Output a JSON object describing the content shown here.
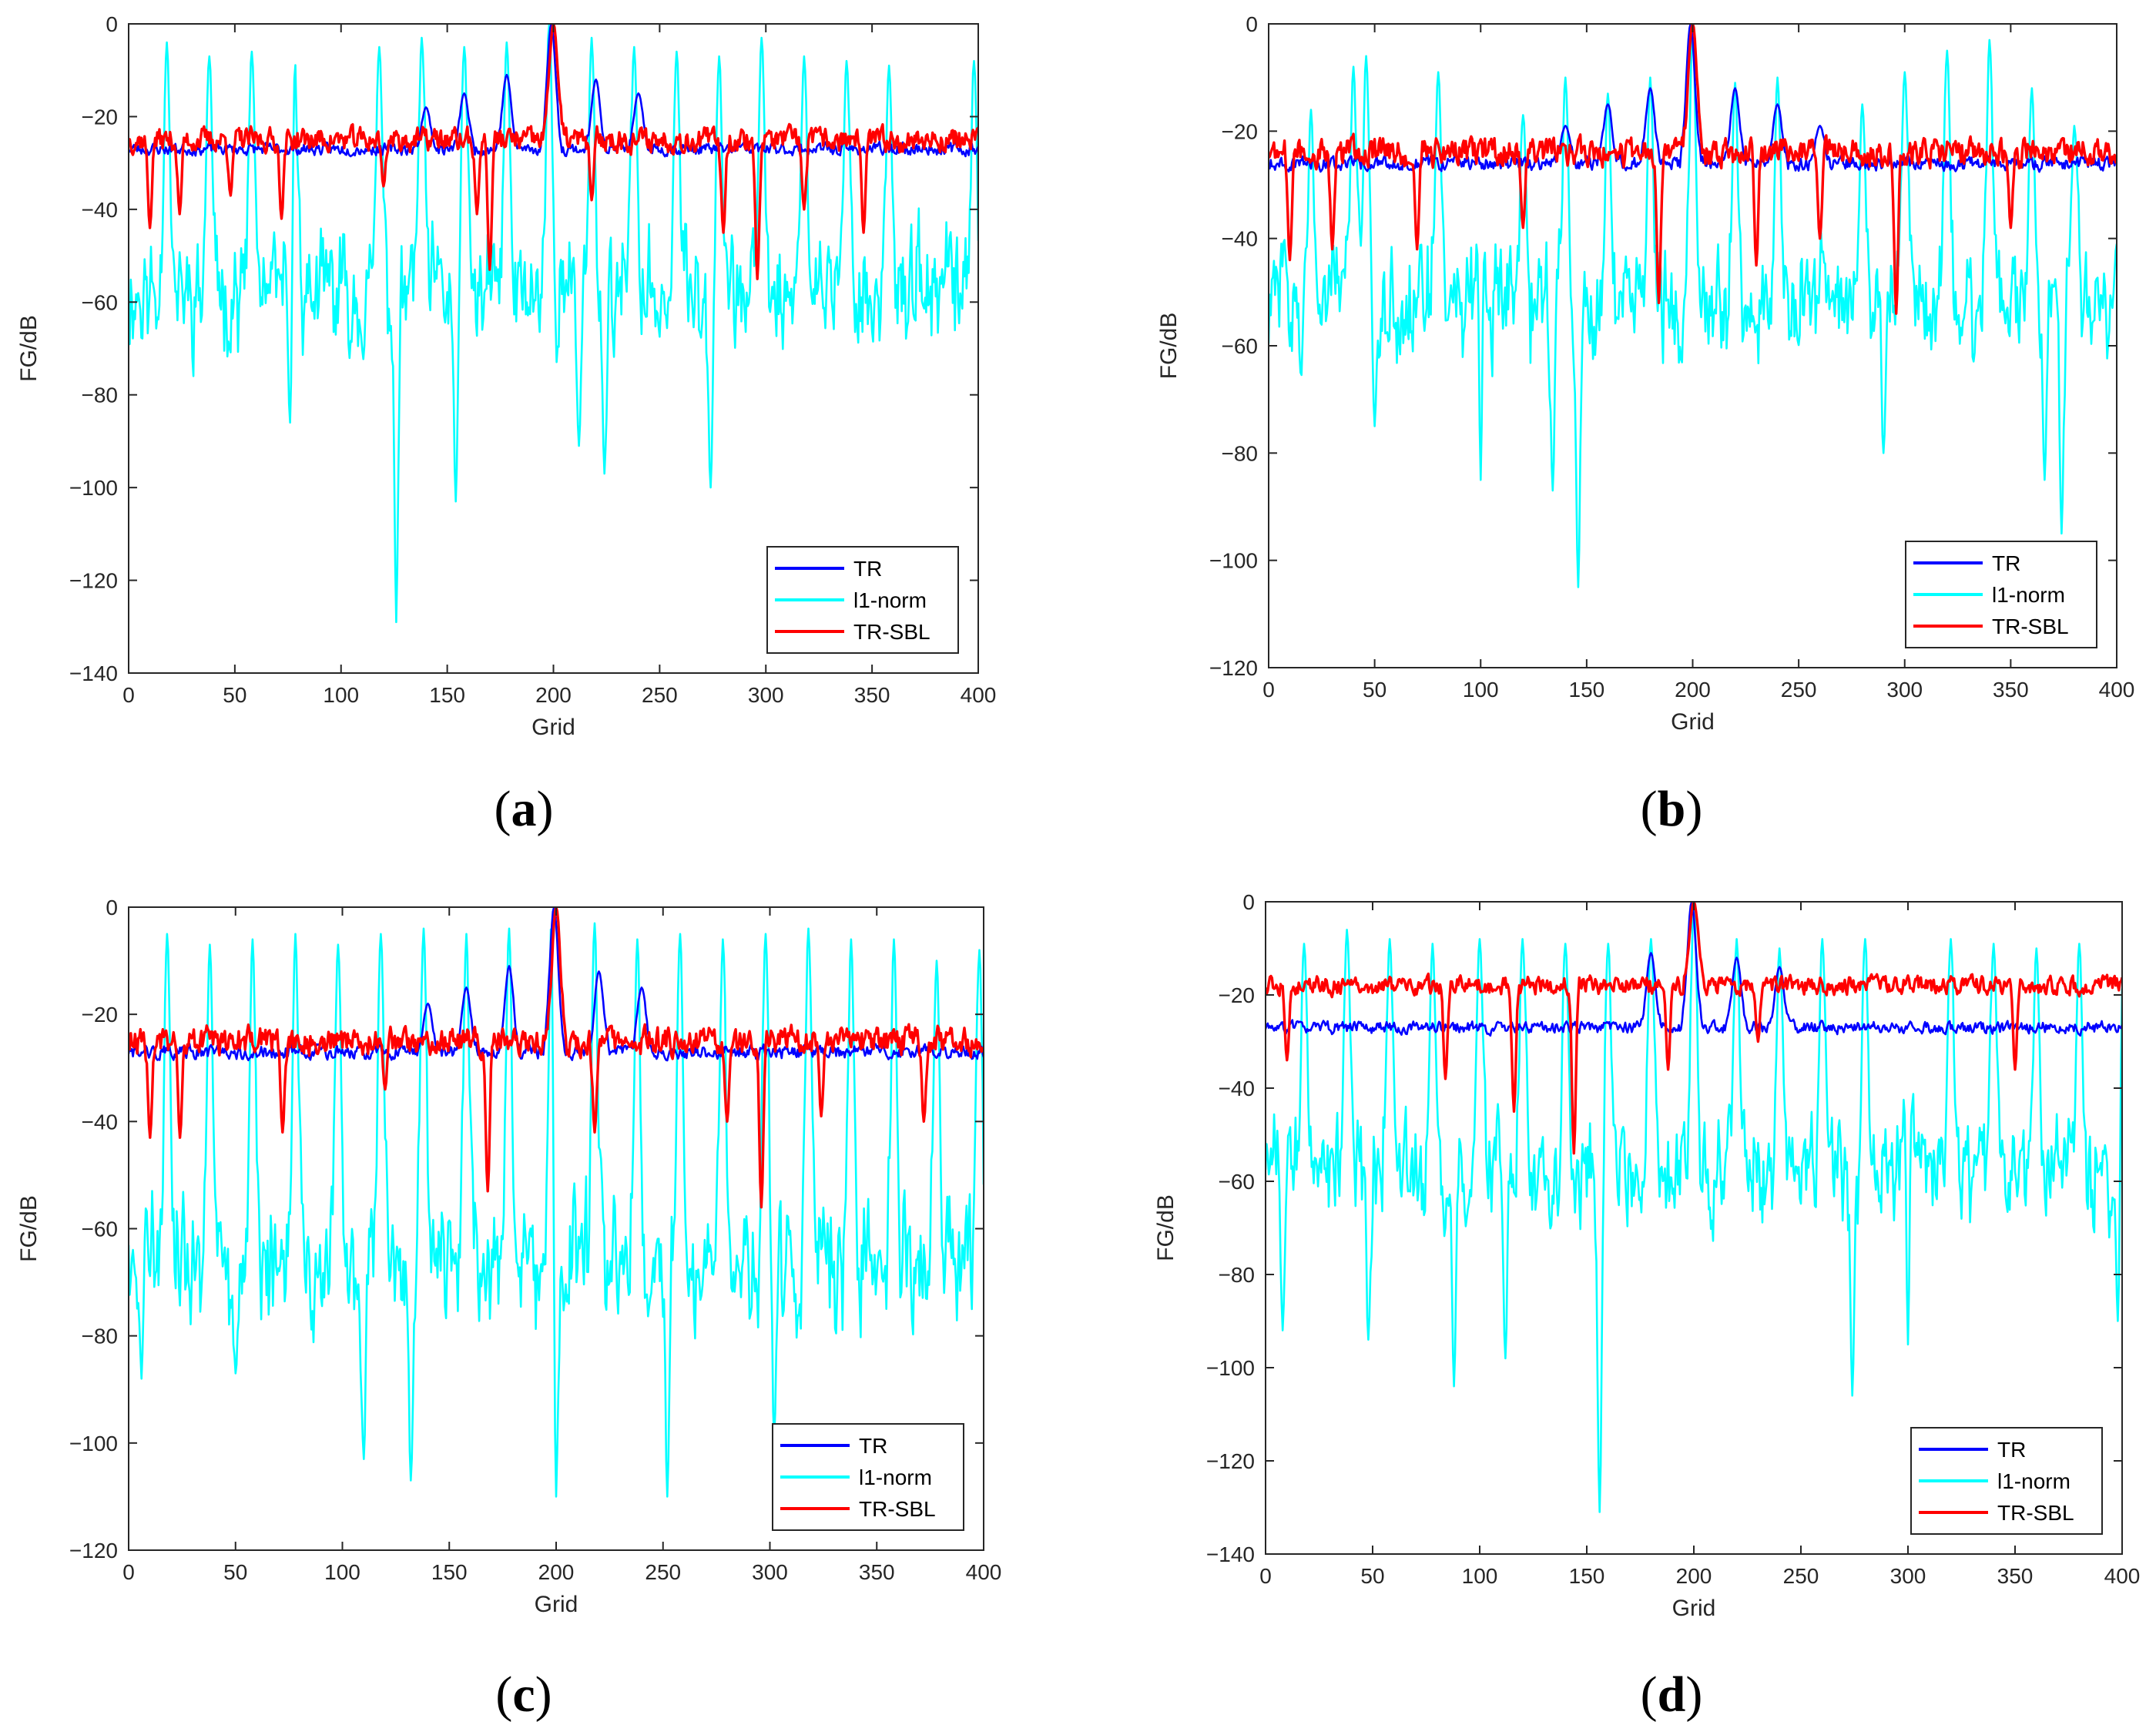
{
  "figure_colors": {
    "TR": "#0000ff",
    "l1-norm": "#00ffff",
    "TR-SBL": "#ff0000",
    "axes": "#262626"
  },
  "chart_data": [
    {
      "panel": "a",
      "caption": "(a)",
      "caption_letter": "a",
      "type": "line",
      "xlabel": "Grid",
      "ylabel": "FG/dB",
      "xlim": [
        0,
        400
      ],
      "ylim": [
        -140,
        0
      ],
      "xticks": [
        0,
        50,
        100,
        150,
        200,
        250,
        300,
        350,
        400
      ],
      "yticks": [
        0,
        -20,
        -40,
        -60,
        -80,
        -100,
        -120,
        -140
      ],
      "legend_position": "bottom-right",
      "peak_grid": 200,
      "series": [
        {
          "name": "TR",
          "color": "#0000ff",
          "baseline": -27,
          "spread": 2,
          "bumps": [
            [
              140,
              -18
            ],
            [
              158,
              -15
            ],
            [
              178,
              -11
            ],
            [
              220,
              -12
            ],
            [
              240,
              -15
            ],
            [
              199,
              0
            ]
          ],
          "dips": []
        },
        {
          "name": "l1-norm",
          "color": "#00ffff",
          "baseline": -58,
          "spread": 12,
          "bumps": [
            [
              18,
              -4
            ],
            [
              38,
              -7
            ],
            [
              58,
              -6
            ],
            [
              78,
              -5
            ],
            [
              118,
              -5
            ],
            [
              138,
              -3
            ],
            [
              158,
              -5
            ],
            [
              178,
              -4
            ],
            [
              198,
              0
            ],
            [
              218,
              -3
            ],
            [
              238,
              -5
            ],
            [
              258,
              -6
            ],
            [
              278,
              -7
            ],
            [
              298,
              -3
            ],
            [
              318,
              -7
            ],
            [
              338,
              -8
            ],
            [
              358,
              -9
            ],
            [
              398,
              -8
            ]
          ],
          "dips": [
            [
              126,
              -129
            ],
            [
              154,
              -103
            ],
            [
              76,
              -86
            ],
            [
              224,
              -97
            ],
            [
              274,
              -100
            ],
            [
              212,
              -91
            ]
          ]
        },
        {
          "name": "TR-SBL",
          "color": "#ff0000",
          "baseline": -25,
          "spread": 4,
          "bumps": [
            [
              200,
              0
            ]
          ],
          "dips": [
            [
              10,
              -44
            ],
            [
              24,
              -41
            ],
            [
              48,
              -37
            ],
            [
              72,
              -42
            ],
            [
              120,
              -35
            ],
            [
              164,
              -41
            ],
            [
              170,
              -53
            ],
            [
              218,
              -38
            ],
            [
              280,
              -45
            ],
            [
              296,
              -55
            ],
            [
              318,
              -40
            ],
            [
              346,
              -45
            ]
          ]
        }
      ]
    },
    {
      "panel": "b",
      "caption": "(b)",
      "caption_letter": "b",
      "type": "line",
      "xlabel": "Grid",
      "ylabel": "FG/dB",
      "xlim": [
        0,
        400
      ],
      "ylim": [
        -120,
        0
      ],
      "xticks": [
        0,
        50,
        100,
        150,
        200,
        250,
        300,
        350,
        400
      ],
      "yticks": [
        0,
        -20,
        -40,
        -60,
        -80,
        -100,
        -120
      ],
      "legend_position": "bottom-right",
      "peak_grid": 200,
      "series": [
        {
          "name": "TR",
          "color": "#0000ff",
          "baseline": -26,
          "spread": 2,
          "bumps": [
            [
              140,
              -19
            ],
            [
              160,
              -15
            ],
            [
              180,
              -12
            ],
            [
              220,
              -12
            ],
            [
              240,
              -15
            ],
            [
              260,
              -19
            ],
            [
              199,
              0
            ]
          ],
          "dips": []
        },
        {
          "name": "l1-norm",
          "color": "#00ffff",
          "baseline": -52,
          "spread": 10,
          "bumps": [
            [
              20,
              -16
            ],
            [
              40,
              -8
            ],
            [
              46,
              -6
            ],
            [
              80,
              -9
            ],
            [
              100,
              -12
            ],
            [
              120,
              -17
            ],
            [
              140,
              -10
            ],
            [
              160,
              -13
            ],
            [
              180,
              -10
            ],
            [
              200,
              0
            ],
            [
              220,
              -11
            ],
            [
              240,
              -10
            ],
            [
              280,
              -15
            ],
            [
              300,
              -9
            ],
            [
              320,
              -5
            ],
            [
              340,
              -3
            ],
            [
              360,
              -12
            ],
            [
              380,
              -19
            ],
            [
              400,
              -41
            ]
          ],
          "dips": [
            [
              146,
              -105
            ],
            [
              374,
              -95
            ],
            [
              100,
              -85
            ],
            [
              134,
              -87
            ],
            [
              290,
              -80
            ],
            [
              366,
              -85
            ],
            [
              50,
              -75
            ]
          ]
        },
        {
          "name": "TR-SBL",
          "color": "#ff0000",
          "baseline": -24,
          "spread": 4,
          "bumps": [
            [
              200,
              0
            ]
          ],
          "dips": [
            [
              10,
              -44
            ],
            [
              30,
              -42
            ],
            [
              70,
              -42
            ],
            [
              120,
              -38
            ],
            [
              184,
              -52
            ],
            [
              230,
              -45
            ],
            [
              296,
              -54
            ],
            [
              260,
              -40
            ],
            [
              350,
              -38
            ]
          ]
        }
      ]
    },
    {
      "panel": "c",
      "caption": "(c)",
      "caption_letter": "c",
      "type": "line",
      "xlabel": "Grid",
      "ylabel": "FG/dB",
      "xlim": [
        0,
        400
      ],
      "ylim": [
        -120,
        0
      ],
      "xticks": [
        0,
        50,
        100,
        150,
        200,
        250,
        300,
        350,
        400
      ],
      "yticks": [
        0,
        -20,
        -40,
        -60,
        -80,
        -100,
        -120
      ],
      "legend_position": "bottom-right",
      "peak_grid": 200,
      "series": [
        {
          "name": "TR",
          "color": "#0000ff",
          "baseline": -27,
          "spread": 2,
          "bumps": [
            [
              140,
              -18
            ],
            [
              158,
              -15
            ],
            [
              178,
              -11
            ],
            [
              220,
              -12
            ],
            [
              240,
              -15
            ],
            [
              199,
              0
            ]
          ],
          "dips": []
        },
        {
          "name": "l1-norm",
          "color": "#00ffff",
          "baseline": -66,
          "spread": 12,
          "bumps": [
            [
              18,
              -5
            ],
            [
              38,
              -7
            ],
            [
              58,
              -6
            ],
            [
              78,
              -5
            ],
            [
              98,
              -7
            ],
            [
              118,
              -5
            ],
            [
              138,
              -4
            ],
            [
              158,
              -5
            ],
            [
              178,
              -4
            ],
            [
              198,
              0
            ],
            [
              218,
              -3
            ],
            [
              238,
              -6
            ],
            [
              258,
              -5
            ],
            [
              278,
              -6
            ],
            [
              298,
              -5
            ],
            [
              318,
              -4
            ],
            [
              338,
              -6
            ],
            [
              358,
              -6
            ],
            [
              378,
              -10
            ],
            [
              398,
              -8
            ]
          ],
          "dips": [
            [
              132,
              -107
            ],
            [
              110,
              -103
            ],
            [
              200,
              -110
            ],
            [
              252,
              -110
            ],
            [
              6,
              -88
            ],
            [
              50,
              -87
            ],
            [
              302,
              -99
            ]
          ]
        },
        {
          "name": "TR-SBL",
          "color": "#ff0000",
          "baseline": -25,
          "spread": 4,
          "bumps": [
            [
              200,
              0
            ]
          ],
          "dips": [
            [
              10,
              -43
            ],
            [
              24,
              -43
            ],
            [
              72,
              -42
            ],
            [
              120,
              -34
            ],
            [
              168,
              -53
            ],
            [
              218,
              -42
            ],
            [
              280,
              -40
            ],
            [
              296,
              -56
            ],
            [
              324,
              -39
            ],
            [
              372,
              -40
            ]
          ]
        }
      ]
    },
    {
      "panel": "d",
      "caption": "(d)",
      "caption_letter": "d",
      "type": "line",
      "xlabel": "Grid",
      "ylabel": "FG/dB",
      "xlim": [
        0,
        400
      ],
      "ylim": [
        -140,
        0
      ],
      "xticks": [
        0,
        50,
        100,
        150,
        200,
        250,
        300,
        350,
        400
      ],
      "yticks": [
        0,
        -20,
        -40,
        -60,
        -80,
        -100,
        -120,
        -140
      ],
      "legend_position": "bottom-right",
      "peak_grid": 200,
      "series": [
        {
          "name": "TR",
          "color": "#0000ff",
          "baseline": -27,
          "spread": 2,
          "bumps": [
            [
              180,
              -11
            ],
            [
              220,
              -12
            ],
            [
              240,
              -14
            ],
            [
              199,
              0
            ]
          ],
          "dips": []
        },
        {
          "name": "l1-norm",
          "color": "#00ffff",
          "baseline": -58,
          "spread": 11,
          "bumps": [
            [
              18,
              -9
            ],
            [
              38,
              -6
            ],
            [
              58,
              -8
            ],
            [
              78,
              -9
            ],
            [
              100,
              -8
            ],
            [
              120,
              -8
            ],
            [
              140,
              -9
            ],
            [
              160,
              -9
            ],
            [
              180,
              -8
            ],
            [
              200,
              0
            ],
            [
              220,
              -8
            ],
            [
              240,
              -10
            ],
            [
              260,
              -8
            ],
            [
              280,
              -8
            ],
            [
              300,
              -10
            ],
            [
              320,
              -8
            ],
            [
              340,
              -9
            ],
            [
              360,
              -10
            ],
            [
              380,
              -9
            ],
            [
              400,
              -12
            ]
          ],
          "dips": [
            [
              156,
              -131
            ],
            [
              274,
              -106
            ],
            [
              88,
              -104
            ],
            [
              8,
              -92
            ],
            [
              112,
              -98
            ],
            [
              300,
              -95
            ],
            [
              398,
              -90
            ],
            [
              48,
              -94
            ]
          ]
        },
        {
          "name": "TR-SBL",
          "color": "#ff0000",
          "baseline": -18,
          "spread": 3,
          "bumps": [
            [
              200,
              0
            ]
          ],
          "dips": [
            [
              10,
              -34
            ],
            [
              84,
              -38
            ],
            [
              116,
              -45
            ],
            [
              144,
              -54
            ],
            [
              188,
              -36
            ],
            [
              230,
              -30
            ],
            [
              350,
              -36
            ]
          ]
        }
      ]
    }
  ]
}
